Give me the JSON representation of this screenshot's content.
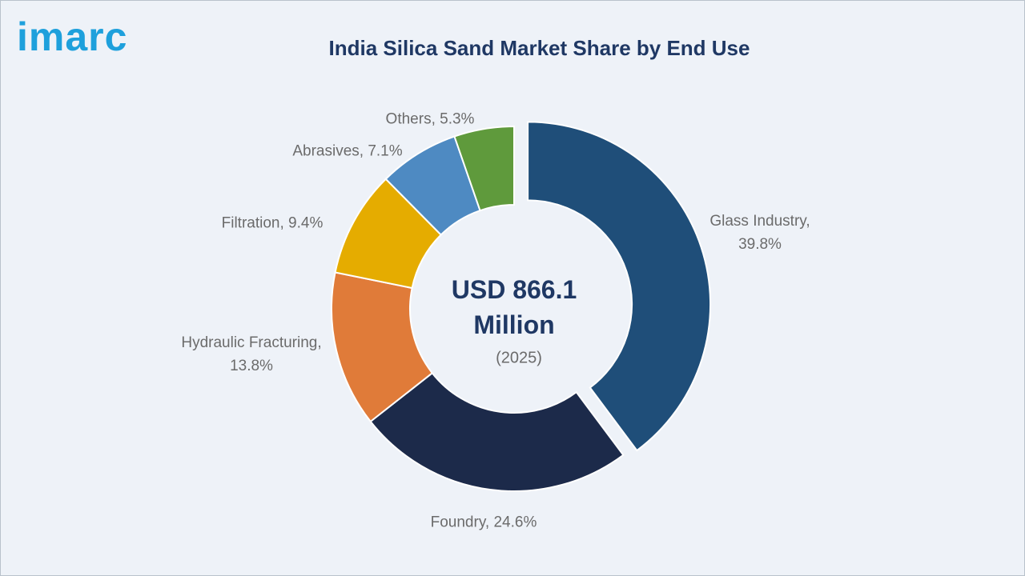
{
  "logo": "imarc",
  "chart_data": {
    "type": "donut",
    "title": "India Silica Sand Market Share by End Use",
    "center_label": "USD 866.1 Million",
    "center_sublabel": "(2025)",
    "values": [
      39.8,
      24.6,
      13.8,
      9.4,
      7.1,
      5.3
    ],
    "value_labels": [
      "Glass Industry, 39.8%",
      "Foundry, 24.6%",
      "Hydraulic Fracturing, 13.8%",
      "Filtration, 9.4%",
      "Abrasives, 7.1%",
      "Others, 5.3%"
    ],
    "colors": [
      "#1f4e79",
      "#1c2a4a",
      "#e07b39",
      "#e5ac00",
      "#4e8ac2",
      "#5f9a3c"
    ]
  }
}
